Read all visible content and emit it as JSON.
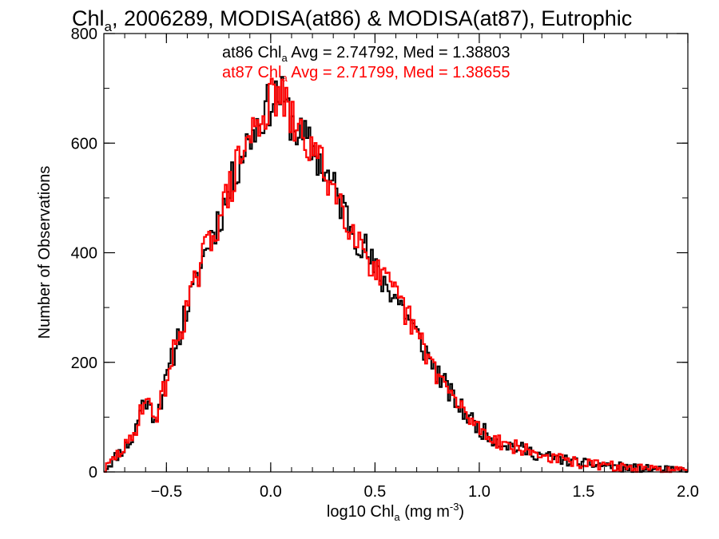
{
  "chart_data": {
    "type": "histogram-step",
    "title": {
      "pre": "Chl",
      "sub": "a",
      "post": ", 2006289, MODISA(at86) & MODISA(at87), Eutrophic"
    },
    "xlabel": {
      "pre": "log10 Chl",
      "sub": "a",
      "mid": " (mg m",
      "sup": "-3",
      "post": ")"
    },
    "ylabel": "Number of Observations",
    "xlim": [
      -0.8,
      2.0
    ],
    "ylim": [
      0,
      800
    ],
    "xticks": [
      {
        "value": -0.5,
        "label": "−0.5"
      },
      {
        "value": 0.0,
        "label": "0.0"
      },
      {
        "value": 0.5,
        "label": "0.5"
      },
      {
        "value": 1.0,
        "label": "1.0"
      },
      {
        "value": 1.5,
        "label": "1.5"
      },
      {
        "value": 2.0,
        "label": "2.0"
      }
    ],
    "yticks": [
      {
        "value": 0,
        "label": "0"
      },
      {
        "value": 200,
        "label": "200"
      },
      {
        "value": 400,
        "label": "400"
      },
      {
        "value": 600,
        "label": "600"
      },
      {
        "value": 800,
        "label": "800"
      }
    ],
    "bin_width": 0.01,
    "stats": [
      {
        "pre": "at86 Chl",
        "sub": "a",
        "post": " Avg = 2.74792, Med = 1.38803",
        "color": "#000000"
      },
      {
        "pre": "at87 Chl",
        "sub": "a",
        "post": " Avg = 2.71799, Med = 1.38655",
        "color": "#ff0000"
      }
    ],
    "series": [
      {
        "color": "#000000",
        "noise": 16,
        "seed": 11
      },
      {
        "color": "#ff0000",
        "noise": 16,
        "seed": 29
      }
    ],
    "shape": {
      "x": [
        -0.8,
        -0.75,
        -0.7,
        -0.66,
        -0.62,
        -0.6,
        -0.58,
        -0.55,
        -0.52,
        -0.5,
        -0.45,
        -0.4,
        -0.35,
        -0.3,
        -0.25,
        -0.2,
        -0.15,
        -0.1,
        -0.05,
        0.0,
        0.03,
        0.05,
        0.1,
        0.15,
        0.2,
        0.25,
        0.3,
        0.35,
        0.4,
        0.45,
        0.5,
        0.55,
        0.6,
        0.65,
        0.7,
        0.75,
        0.8,
        0.85,
        0.9,
        0.95,
        1.0,
        1.05,
        1.1,
        1.2,
        1.3,
        1.4,
        1.5,
        1.6,
        1.7,
        1.8,
        1.9,
        2.0
      ],
      "y": [
        2,
        25,
        45,
        60,
        120,
        135,
        115,
        100,
        140,
        165,
        240,
        300,
        355,
        420,
        460,
        510,
        570,
        610,
        645,
        675,
        690,
        685,
        640,
        610,
        590,
        555,
        520,
        480,
        440,
        410,
        365,
        345,
        320,
        290,
        250,
        215,
        180,
        150,
        120,
        100,
        80,
        65,
        55,
        42,
        30,
        22,
        15,
        12,
        8,
        5,
        3,
        2
      ]
    }
  }
}
